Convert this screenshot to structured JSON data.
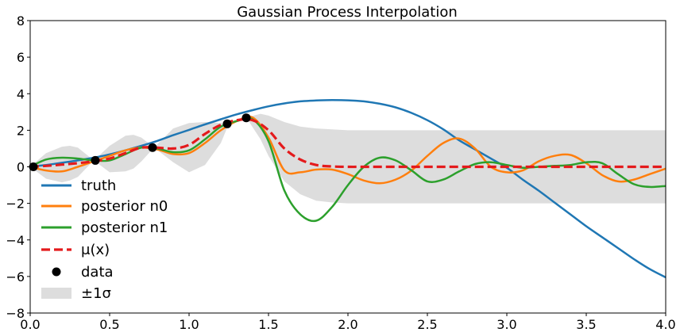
{
  "chart_data": {
    "type": "line",
    "title": "Gaussian Process Interpolation",
    "xlabel": "",
    "ylabel": "",
    "xlim": [
      0.0,
      4.0
    ],
    "ylim": [
      -8,
      8
    ],
    "xticks": [
      "0.0",
      "0.5",
      "1.0",
      "1.5",
      "2.0",
      "2.5",
      "3.0",
      "3.5",
      "4.0"
    ],
    "yticks": [
      "−8",
      "−6",
      "−4",
      "−2",
      "0",
      "2",
      "4",
      "6",
      "8"
    ],
    "grid": false,
    "legend_position": "lower-left",
    "colors": {
      "truth": "#1f77b4",
      "posterior_n0": "#ff7f0e",
      "posterior_n1": "#2ca02c",
      "mu": "#e41a1c",
      "data": "#000000",
      "band": "#dddddd"
    },
    "x": [
      0.0,
      0.1,
      0.2,
      0.3,
      0.4,
      0.5,
      0.6,
      0.7,
      0.8,
      0.9,
      1.0,
      1.1,
      1.2,
      1.3,
      1.4,
      1.5,
      1.6,
      1.7,
      1.8,
      1.9,
      2.0,
      2.1,
      2.2,
      2.3,
      2.4,
      2.5,
      2.6,
      2.7,
      2.8,
      2.9,
      3.0,
      3.1,
      3.2,
      3.3,
      3.4,
      3.5,
      3.6,
      3.7,
      3.8,
      3.9,
      4.0
    ],
    "series": [
      {
        "name": "truth",
        "style": "solid",
        "values": [
          0.0,
          0.1,
          0.22,
          0.35,
          0.5,
          0.68,
          0.9,
          1.15,
          1.42,
          1.73,
          2.02,
          2.32,
          2.6,
          2.87,
          3.1,
          3.31,
          3.47,
          3.58,
          3.63,
          3.65,
          3.64,
          3.58,
          3.45,
          3.25,
          2.95,
          2.55,
          2.05,
          1.45,
          0.95,
          0.45,
          -0.05,
          -0.7,
          -1.3,
          -1.95,
          -2.6,
          -3.25,
          -3.85,
          -4.45,
          -5.05,
          -5.6,
          -6.05
        ]
      },
      {
        "name": "posterior n0",
        "style": "solid",
        "values": [
          0.0,
          -0.2,
          -0.25,
          0.0,
          0.3,
          0.6,
          0.9,
          1.05,
          0.95,
          0.7,
          0.75,
          1.3,
          2.0,
          2.5,
          2.7,
          1.6,
          -0.2,
          -0.3,
          -0.15,
          -0.15,
          -0.4,
          -0.75,
          -0.9,
          -0.7,
          -0.2,
          0.6,
          1.3,
          1.55,
          1.0,
          0.0,
          -0.3,
          -0.2,
          0.3,
          0.6,
          0.65,
          0.2,
          -0.45,
          -0.8,
          -0.7,
          -0.4,
          -0.1
        ]
      },
      {
        "name": "posterior n1",
        "style": "solid",
        "values": [
          0.0,
          0.4,
          0.5,
          0.45,
          0.35,
          0.35,
          0.7,
          1.05,
          1.0,
          0.8,
          0.9,
          1.5,
          2.2,
          2.5,
          2.6,
          1.4,
          -1.3,
          -2.6,
          -2.95,
          -2.2,
          -1.0,
          0.0,
          0.5,
          0.35,
          -0.2,
          -0.8,
          -0.7,
          -0.25,
          0.15,
          0.25,
          0.1,
          -0.05,
          0.0,
          0.05,
          0.1,
          0.25,
          0.2,
          -0.4,
          -0.95,
          -1.1,
          -1.05
        ]
      },
      {
        "name": "μ(x)",
        "style": "dashed",
        "values": [
          0.0,
          0.05,
          0.12,
          0.2,
          0.3,
          0.45,
          0.75,
          1.05,
          1.05,
          1.0,
          1.2,
          1.8,
          2.3,
          2.55,
          2.55,
          2.0,
          1.0,
          0.4,
          0.1,
          0.02,
          0.0,
          0.0,
          0.0,
          0.0,
          0.0,
          0.0,
          0.0,
          0.0,
          0.0,
          0.0,
          0.0,
          0.0,
          0.0,
          0.0,
          0.0,
          0.0,
          0.0,
          0.0,
          0.0,
          0.0,
          0.0
        ]
      }
    ],
    "band": {
      "name": "±1σ",
      "x": [
        0.0,
        0.1,
        0.2,
        0.25,
        0.3,
        0.4,
        0.5,
        0.6,
        0.65,
        0.7,
        0.78,
        0.9,
        1.0,
        1.1,
        1.2,
        1.25,
        1.3,
        1.36,
        1.45,
        1.5,
        1.6,
        1.7,
        1.8,
        1.9,
        2.0,
        2.5,
        3.0,
        3.5,
        4.0
      ],
      "upper": [
        0.0,
        0.75,
        1.1,
        1.15,
        1.05,
        0.35,
        1.15,
        1.7,
        1.75,
        1.6,
        1.05,
        2.1,
        2.4,
        2.45,
        2.4,
        2.35,
        2.6,
        2.7,
        2.9,
        2.8,
        2.45,
        2.2,
        2.1,
        2.05,
        2.0,
        2.0,
        2.0,
        2.0,
        2.0
      ],
      "lower": [
        0.0,
        -0.65,
        -0.85,
        -0.75,
        -0.55,
        0.35,
        -0.3,
        -0.25,
        -0.1,
        0.3,
        1.05,
        0.25,
        -0.3,
        0.1,
        1.3,
        2.35,
        2.55,
        2.7,
        1.5,
        0.6,
        -0.8,
        -1.5,
        -1.85,
        -1.95,
        -2.0,
        -2.0,
        -2.0,
        -2.0,
        -2.0
      ]
    },
    "data_points": {
      "name": "data",
      "x": [
        0.02,
        0.41,
        0.77,
        1.24,
        1.36
      ],
      "y": [
        0.0,
        0.35,
        1.05,
        2.35,
        2.68
      ]
    }
  }
}
